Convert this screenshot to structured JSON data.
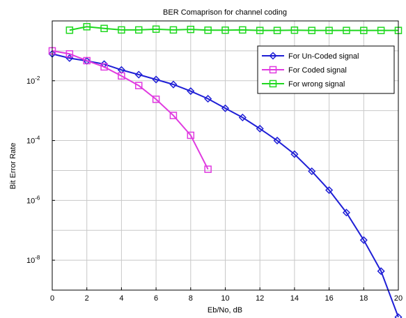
{
  "chart_data": {
    "type": "line",
    "title": "BER Comaprison for channel coding",
    "xlabel": "Eb/No, dB",
    "ylabel": "Bit Error Rate",
    "xlim": [
      0,
      20
    ],
    "ylim": [
      1e-09,
      1
    ],
    "yscale": "log",
    "grid": true,
    "legend_position": "top-right",
    "x_ticks": [
      {
        "value": 0,
        "label": "0"
      },
      {
        "value": 2,
        "label": "2"
      },
      {
        "value": 4,
        "label": "4"
      },
      {
        "value": 6,
        "label": "6"
      },
      {
        "value": 8,
        "label": "8"
      },
      {
        "value": 10,
        "label": "10"
      },
      {
        "value": 12,
        "label": "12"
      },
      {
        "value": 14,
        "label": "14"
      },
      {
        "value": 16,
        "label": "16"
      },
      {
        "value": 18,
        "label": "18"
      },
      {
        "value": 20,
        "label": "20"
      }
    ],
    "y_ticks": [
      {
        "value": 0.01,
        "base": "10",
        "exp": "-2"
      },
      {
        "value": 0.0001,
        "base": "10",
        "exp": "-4"
      },
      {
        "value": 1e-06,
        "base": "10",
        "exp": "-6"
      },
      {
        "value": 1e-08,
        "base": "10",
        "exp": "-8"
      }
    ],
    "series": [
      {
        "name": "For Un-Coded signal",
        "color": "#1f1fd6",
        "marker": "diamond",
        "x": [
          0,
          1,
          2,
          3,
          4,
          5,
          6,
          7,
          8,
          9,
          10,
          11,
          12,
          13,
          14,
          15,
          16,
          17,
          18,
          19,
          20
        ],
        "y": [
          0.079,
          0.057,
          0.046,
          0.036,
          0.023,
          0.016,
          0.011,
          0.0075,
          0.0045,
          0.0025,
          0.0012,
          0.00059,
          0.00025,
          0.0001,
          3.5e-05,
          9.4e-06,
          2.2e-06,
          3.9e-07,
          4.7e-08,
          4.3e-09,
          1.25e-10
        ]
      },
      {
        "name": "For Coded signal",
        "color": "#e03ae0",
        "marker": "square",
        "x": [
          0,
          1,
          2,
          3,
          4,
          5,
          6,
          7,
          8,
          9
        ],
        "y": [
          0.1,
          0.079,
          0.047,
          0.029,
          0.0145,
          0.0069,
          0.0024,
          0.00069,
          0.00015,
          1.1e-05
        ]
      },
      {
        "name": "For wrong signal",
        "color": "#1fd81f",
        "marker": "square",
        "x": [
          1,
          2,
          3,
          4,
          5,
          6,
          7,
          8,
          9,
          10,
          11,
          12,
          13,
          14,
          15,
          16,
          17,
          18,
          19,
          20
        ],
        "y": [
          0.49,
          0.64,
          0.56,
          0.5,
          0.5,
          0.53,
          0.5,
          0.52,
          0.49,
          0.49,
          0.5,
          0.48,
          0.48,
          0.49,
          0.48,
          0.48,
          0.48,
          0.48,
          0.48,
          0.48
        ]
      }
    ]
  }
}
